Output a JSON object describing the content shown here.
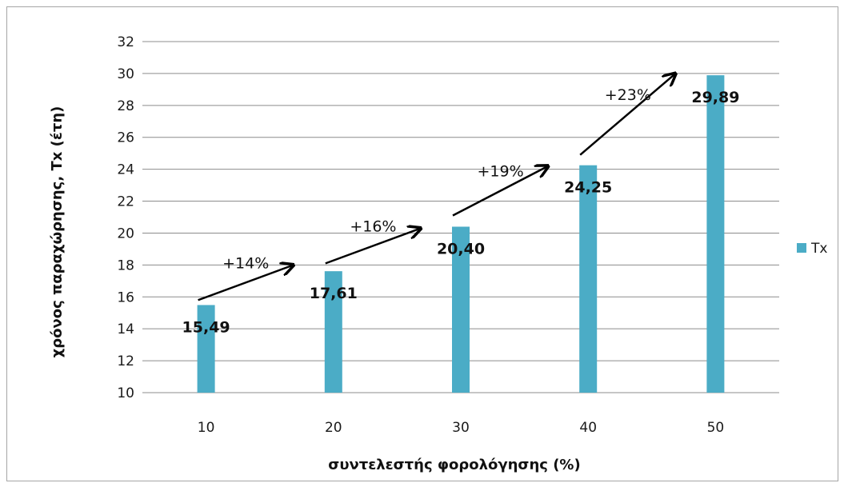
{
  "chart_data": {
    "type": "bar",
    "categories": [
      "10",
      "20",
      "30",
      "40",
      "50"
    ],
    "series": [
      {
        "name": "Tx",
        "values": [
          15.49,
          17.61,
          20.4,
          24.25,
          29.89
        ],
        "labels": [
          "15,49",
          "17,61",
          "20,40",
          "24,25",
          "29,89"
        ],
        "color": "#4bacc6"
      }
    ],
    "title": "",
    "xlabel": "συντελεστής φορολόγησης (%)",
    "ylabel": "χρόνος παραχώρησης, Tx (έτη)",
    "ylim": [
      10,
      32
    ],
    "yticks": [
      10,
      12,
      14,
      16,
      18,
      20,
      22,
      24,
      26,
      28,
      30,
      32
    ],
    "grid": true,
    "legend": "right",
    "annotations": [
      {
        "text": "+14%",
        "from_category": "10",
        "from_value": 15.8,
        "to_category": "20",
        "to_value": 18.0
      },
      {
        "text": "+16%",
        "from_category": "20",
        "from_value": 18.1,
        "to_category": "30",
        "to_value": 20.3
      },
      {
        "text": "+19%",
        "from_category": "30",
        "from_value": 21.1,
        "to_category": "40",
        "to_value": 24.2
      },
      {
        "text": "+23%",
        "from_category": "40",
        "from_value": 24.9,
        "to_category": "50",
        "to_value": 30.0
      }
    ]
  }
}
